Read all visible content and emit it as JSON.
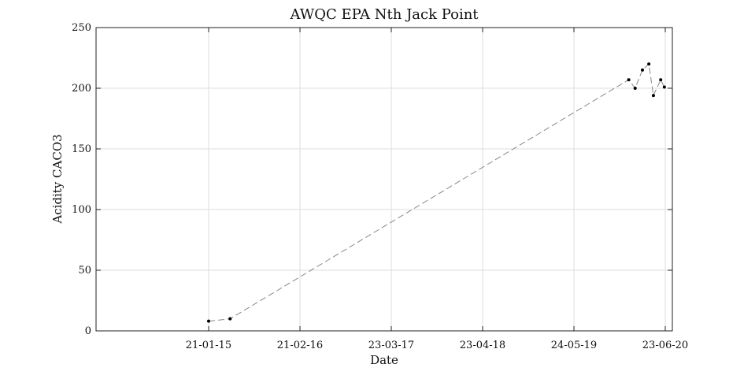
{
  "chart_data": {
    "type": "line",
    "title": "AWQC EPA Nth Jack Point",
    "xlabel": "Date",
    "ylabel": "Acidity CACO3",
    "ylim": [
      0,
      250
    ],
    "yticks": [
      0,
      50,
      100,
      150,
      200,
      250
    ],
    "xticks": [
      "21-01-15",
      "21-02-16",
      "23-03-17",
      "23-04-18",
      "24-05-19",
      "23-06-20"
    ],
    "grid": true,
    "line_style": "dashed",
    "line_color": "#888888",
    "marker_color": "#000000",
    "series": [
      {
        "x": [
          0.0,
          0.235,
          4.6,
          4.67,
          4.75,
          4.82,
          4.87,
          4.95,
          4.99
        ],
        "y": [
          8,
          10,
          207,
          200,
          215,
          220,
          194,
          207,
          201
        ]
      }
    ]
  }
}
